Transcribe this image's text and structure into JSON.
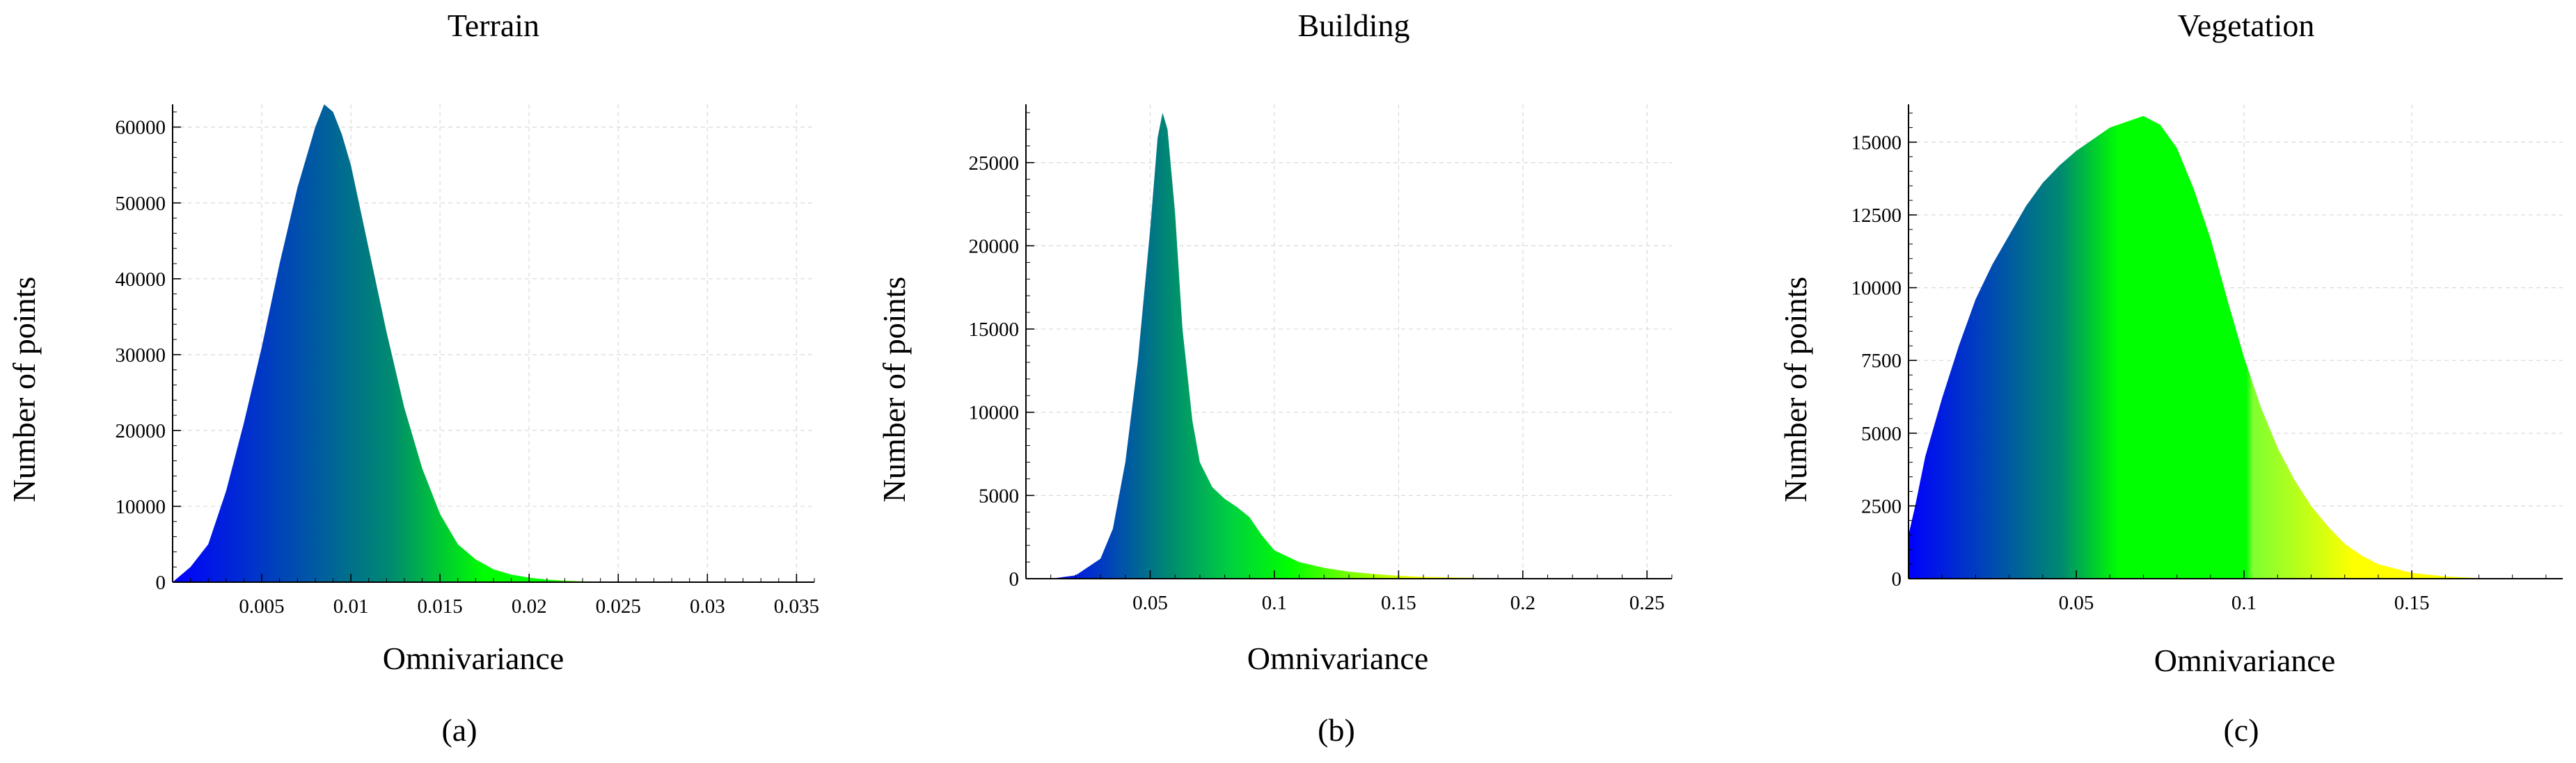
{
  "colors": {
    "gradient": [
      "#0000ff",
      "#00a060",
      "#00ff00",
      "#ffff00"
    ],
    "grid": "#d9d9d9",
    "axis": "#000000"
  },
  "chart_data": [
    {
      "type": "area",
      "title": "Terrain",
      "caption": "(a)",
      "xlabel": "Omnivariance",
      "ylabel": "Number of points",
      "xlim": [
        0,
        0.036
      ],
      "ylim": [
        0,
        63000
      ],
      "xticks": [
        0.005,
        0.01,
        0.015,
        0.02,
        0.025,
        0.03,
        0.035
      ],
      "xtick_labels": [
        "0.005",
        "0.01",
        "0.015",
        "0.02",
        "0.025",
        "0.03",
        "0.035"
      ],
      "yticks": [
        0,
        10000,
        20000,
        30000,
        40000,
        50000,
        60000
      ],
      "ytick_labels": [
        "0",
        "10000",
        "20000",
        "30000",
        "40000",
        "50000",
        "60000"
      ],
      "grid": true,
      "gradient_stops": [
        [
          0,
          "#0000ff"
        ],
        [
          0.35,
          "#008a70"
        ],
        [
          0.5,
          "#00ff00"
        ],
        [
          0.6,
          "#00ff00"
        ],
        [
          0.72,
          "#ffff00"
        ],
        [
          1,
          "#ffff00"
        ]
      ],
      "series": [
        {
          "x": [
            0,
            0.001,
            0.002,
            0.003,
            0.004,
            0.005,
            0.006,
            0.007,
            0.008,
            0.0085,
            0.009,
            0.0095,
            0.01,
            0.011,
            0.012,
            0.013,
            0.014,
            0.015,
            0.016,
            0.017,
            0.018,
            0.019,
            0.02,
            0.021,
            0.022,
            0.023,
            0.024,
            0.025,
            0.026,
            0.028,
            0.03,
            0.032,
            0.035
          ],
          "values": [
            0,
            2000,
            5000,
            12000,
            21000,
            31000,
            42000,
            52000,
            60000,
            63000,
            62000,
            59000,
            55000,
            44000,
            33000,
            23000,
            15000,
            9000,
            5000,
            3000,
            1700,
            1000,
            600,
            350,
            200,
            110,
            60,
            30,
            15,
            5,
            2,
            0,
            0
          ]
        }
      ]
    },
    {
      "type": "area",
      "title": "Building",
      "caption": "(b)",
      "xlabel": "Omnivariance",
      "ylabel": "Number of points",
      "xlim": [
        0,
        0.26
      ],
      "ylim": [
        0,
        28500
      ],
      "xticks": [
        0.05,
        0.1,
        0.15,
        0.2,
        0.25
      ],
      "xtick_labels": [
        "0.05",
        "0.1",
        "0.15",
        "0.2",
        "0.25"
      ],
      "yticks": [
        0,
        5000,
        10000,
        15000,
        20000,
        25000
      ],
      "ytick_labels": [
        "0",
        "5000",
        "10000",
        "15000",
        "20000",
        "25000"
      ],
      "grid": true,
      "gradient_stops": [
        [
          0,
          "#0000ff"
        ],
        [
          0.2,
          "#008a70"
        ],
        [
          0.3,
          "#00d040"
        ],
        [
          0.4,
          "#00ff00"
        ],
        [
          0.62,
          "#ffff00"
        ],
        [
          1,
          "#ffff00"
        ]
      ],
      "series": [
        {
          "x": [
            0.01,
            0.02,
            0.03,
            0.035,
            0.04,
            0.045,
            0.05,
            0.053,
            0.055,
            0.057,
            0.06,
            0.063,
            0.067,
            0.07,
            0.075,
            0.08,
            0.085,
            0.09,
            0.095,
            0.1,
            0.11,
            0.12,
            0.13,
            0.14,
            0.15,
            0.16,
            0.18,
            0.2,
            0.22,
            0.25
          ],
          "values": [
            0,
            200,
            1200,
            3000,
            7000,
            13000,
            21000,
            26500,
            28000,
            27000,
            22000,
            15000,
            9500,
            7000,
            5500,
            4800,
            4300,
            3700,
            2600,
            1700,
            1000,
            650,
            420,
            280,
            180,
            110,
            50,
            20,
            8,
            0
          ]
        }
      ]
    },
    {
      "type": "area",
      "title": "Vegetation",
      "caption": "(c)",
      "xlabel": "Omnivariance",
      "ylabel": "Number of points",
      "xlim": [
        0,
        0.195
      ],
      "ylim": [
        0,
        16300
      ],
      "xticks": [
        0.05,
        0.1,
        0.15
      ],
      "xtick_labels": [
        "0.05",
        "0.1",
        "0.15"
      ],
      "yticks": [
        0,
        2500,
        5000,
        7500,
        10000,
        12500,
        15000
      ],
      "ytick_labels": [
        "0",
        "2500",
        "5000",
        "7500",
        "10000",
        "12500",
        "15000"
      ],
      "grid": true,
      "gradient_stops": [
        [
          0,
          "#0000ff"
        ],
        [
          0.24,
          "#008a70"
        ],
        [
          0.33,
          "#00ff00"
        ],
        [
          0.53,
          "#00ff00"
        ],
        [
          0.54,
          "#7fff30"
        ],
        [
          0.7,
          "#ffff00"
        ],
        [
          1,
          "#ffff00"
        ]
      ],
      "series": [
        {
          "x": [
            0,
            0.002,
            0.005,
            0.01,
            0.015,
            0.02,
            0.025,
            0.03,
            0.035,
            0.04,
            0.045,
            0.05,
            0.055,
            0.06,
            0.065,
            0.07,
            0.075,
            0.08,
            0.085,
            0.09,
            0.095,
            0.1,
            0.105,
            0.11,
            0.115,
            0.12,
            0.125,
            0.13,
            0.135,
            0.14,
            0.15,
            0.16,
            0.17,
            0.19
          ],
          "values": [
            1500,
            2500,
            4200,
            6200,
            8000,
            9600,
            10800,
            11800,
            12800,
            13600,
            14200,
            14700,
            15100,
            15500,
            15700,
            15900,
            15600,
            14800,
            13400,
            11700,
            9600,
            7600,
            5900,
            4500,
            3400,
            2500,
            1800,
            1200,
            800,
            500,
            200,
            80,
            20,
            0
          ]
        }
      ]
    }
  ]
}
